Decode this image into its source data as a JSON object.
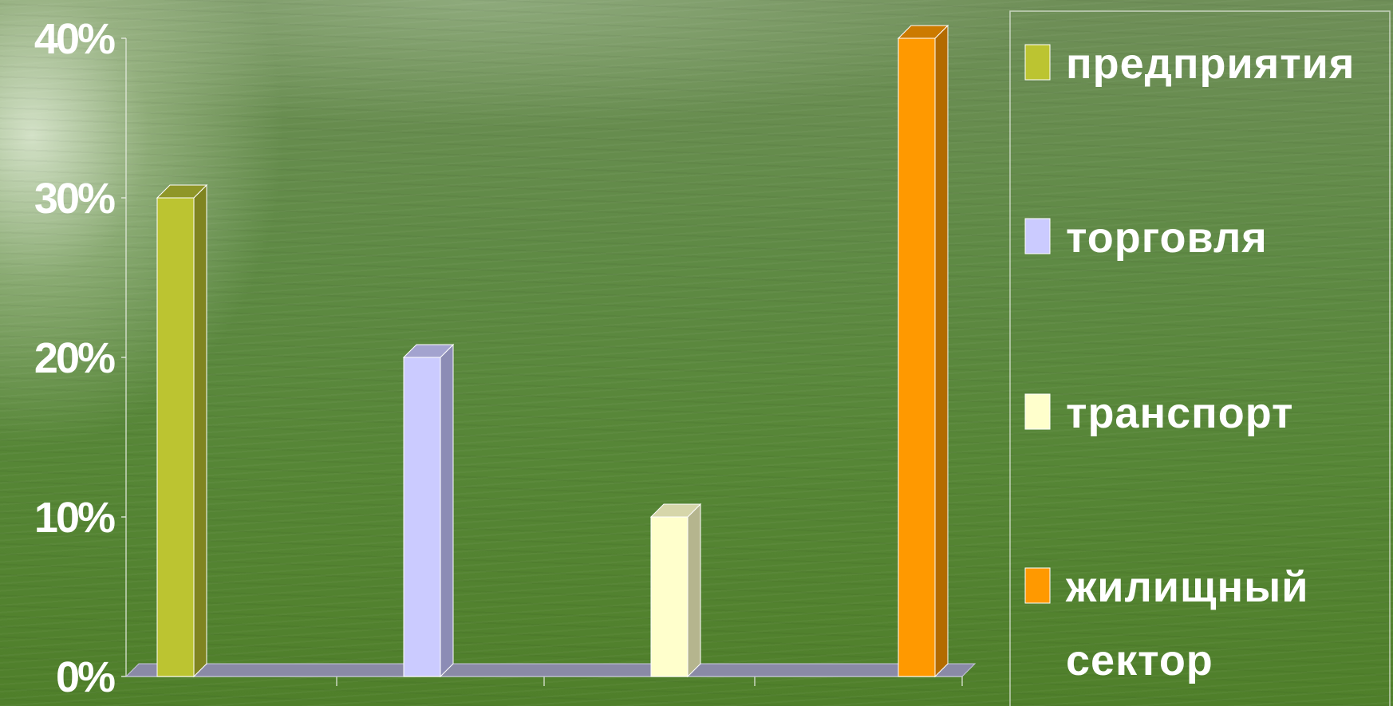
{
  "chart_data": {
    "type": "bar",
    "style": "3d-column",
    "title": "",
    "xlabel": "",
    "ylabel": "",
    "ylim": [
      0,
      40
    ],
    "yticks": [
      "0%",
      "10%",
      "20%",
      "30%",
      "40%"
    ],
    "grid": false,
    "legend_position": "right",
    "series": [
      {
        "name": "предприятия",
        "value": 30,
        "color": "#bcc431",
        "side_color": "#7f8420",
        "top_color": "#8f9628"
      },
      {
        "name": "торговля",
        "value": 20,
        "color": "#cbcbff",
        "side_color": "#8c8cb5",
        "top_color": "#a3a3cf"
      },
      {
        "name": "транспорт",
        "value": 10,
        "color": "#ffffcc",
        "side_color": "#b5b58e",
        "top_color": "#d6d6aa"
      },
      {
        "name": "жилищный сектор",
        "name_lines": [
          "жилищный",
          "сектор"
        ],
        "value": 40,
        "color": "#ff9900",
        "side_color": "#b36b00",
        "top_color": "#cc7a00"
      }
    ]
  }
}
